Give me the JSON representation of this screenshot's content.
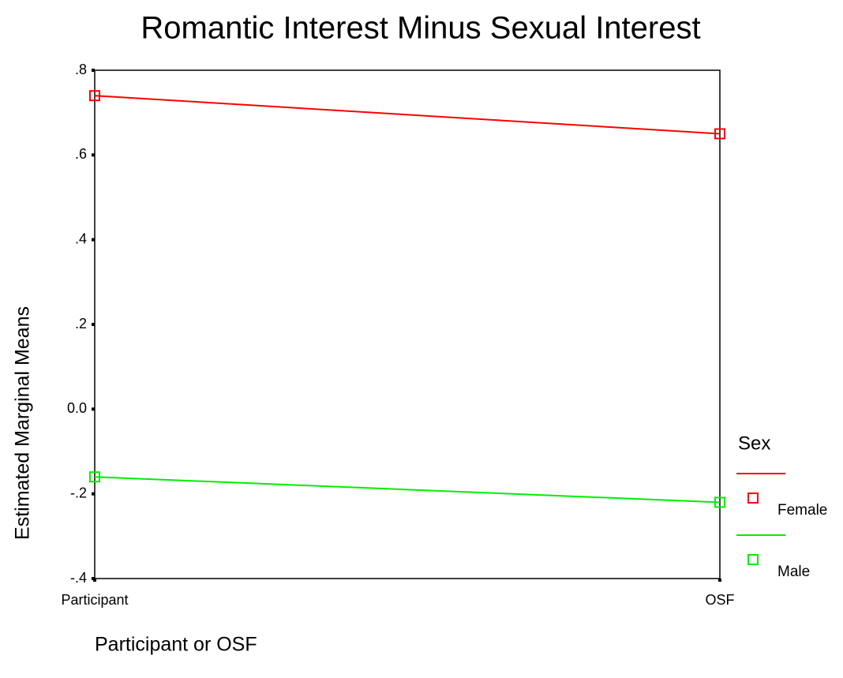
{
  "chart_data": {
    "type": "line",
    "title": "Romantic Interest Minus Sexual Interest",
    "xlabel": "Participant or OSF",
    "ylabel": "Estimated Marginal Means",
    "categories": [
      "Participant",
      "OSF"
    ],
    "series": [
      {
        "name": "Female",
        "color": "#ff0000",
        "values": [
          0.74,
          0.65
        ]
      },
      {
        "name": "Male",
        "color": "#00ee00",
        "values": [
          -0.16,
          -0.22
        ]
      }
    ],
    "legend_title": "Sex",
    "legend": "right",
    "ylim": [
      -0.4,
      0.8
    ],
    "yticks": [
      {
        "value": 0.8,
        "label": ".8"
      },
      {
        "value": 0.6,
        "label": ".6"
      },
      {
        "value": 0.4,
        "label": ".4"
      },
      {
        "value": 0.2,
        "label": ".2"
      },
      {
        "value": 0,
        "label": "0.0"
      },
      {
        "value": -0.2,
        "label": "-.2"
      },
      {
        "value": -0.4,
        "label": "-.4"
      }
    ],
    "grid": false
  }
}
